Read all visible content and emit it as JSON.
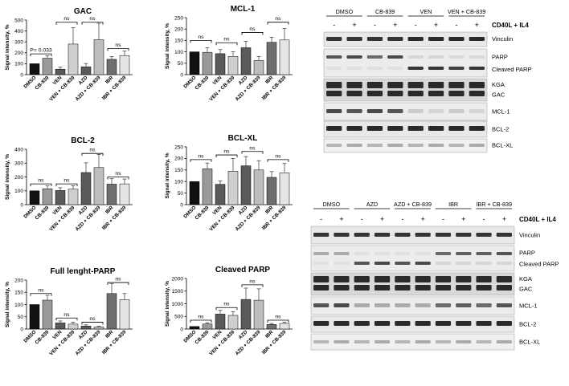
{
  "chart_data": [
    {
      "type": "bar",
      "title": "GAC",
      "ylabel": "Signal intensity, %",
      "categories": [
        "DMSO",
        "CB-839",
        "VEN",
        "VEN + CB-839",
        "AZD",
        "AZD + CB-839",
        "IBR",
        "IBR + CB-839"
      ],
      "values": [
        100,
        150,
        50,
        280,
        72,
        320,
        140,
        175
      ],
      "errors": [
        0,
        22,
        18,
        150,
        30,
        150,
        25,
        40
      ],
      "ylim": [
        0,
        500
      ],
      "yticks": [
        "0",
        "100",
        "200",
        "300",
        "400",
        "500"
      ],
      "annotations": [
        {
          "from": 0,
          "to": 1,
          "label": "P= 0.033",
          "level": 190
        },
        {
          "from": 2,
          "to": 3,
          "label": "ns",
          "level": 480
        },
        {
          "from": 4,
          "to": 5,
          "label": "ns",
          "level": 480
        },
        {
          "from": 6,
          "to": 7,
          "label": "ns",
          "level": 240
        }
      ]
    },
    {
      "type": "bar",
      "title": "MCL-1",
      "ylabel": "Signal intensity, %",
      "categories": [
        "DMSO",
        "CB-839",
        "VEN",
        "VEN + CB-839",
        "AZD",
        "AZD + CB-839",
        "IBR",
        "IBR + CB-839"
      ],
      "values": [
        100,
        98,
        92,
        80,
        118,
        62,
        142,
        152
      ],
      "errors": [
        0,
        20,
        18,
        20,
        28,
        18,
        22,
        50
      ],
      "ylim": [
        0,
        250
      ],
      "yticks": [
        "0",
        "50",
        "100",
        "150",
        "200",
        "250"
      ],
      "annotations": [
        {
          "from": 0,
          "to": 1,
          "label": "ns",
          "level": 150
        },
        {
          "from": 2,
          "to": 3,
          "label": "ns",
          "level": 140
        },
        {
          "from": 4,
          "to": 5,
          "label": "ns",
          "level": 185
        },
        {
          "from": 6,
          "to": 7,
          "label": "ns",
          "level": 230
        }
      ]
    },
    {
      "type": "bar",
      "title": "BCL-2",
      "ylabel": "Signal intensity, %",
      "categories": [
        "DMSO",
        "CB-839",
        "VEN",
        "VEN + CB-839",
        "AZD",
        "AZD + CB-839",
        "IBR",
        "IBR + CB-839"
      ],
      "values": [
        100,
        115,
        102,
        112,
        232,
        268,
        148,
        150
      ],
      "errors": [
        0,
        20,
        20,
        25,
        70,
        95,
        40,
        35
      ],
      "ylim": [
        0,
        400
      ],
      "yticks": [
        "0",
        "100",
        "200",
        "300",
        "400"
      ],
      "annotations": [
        {
          "from": 0,
          "to": 1,
          "label": "ns",
          "level": 150
        },
        {
          "from": 2,
          "to": 3,
          "label": "ns",
          "level": 150
        },
        {
          "from": 4,
          "to": 5,
          "label": "ns",
          "level": 370
        },
        {
          "from": 6,
          "to": 7,
          "label": "ns",
          "level": 200
        }
      ]
    },
    {
      "type": "bar",
      "title": "BCL-XL",
      "ylabel": "Signal intensity, %",
      "categories": [
        "DMSO",
        "CB-839",
        "VEN",
        "VEN + CB-839",
        "AZD",
        "AZD + CB-839",
        "IBR",
        "IBR + CB-839"
      ],
      "values": [
        100,
        155,
        88,
        145,
        168,
        150,
        118,
        138
      ],
      "errors": [
        0,
        25,
        15,
        55,
        40,
        40,
        25,
        40
      ],
      "ylim": [
        0,
        250
      ],
      "yticks": [
        "0",
        "50",
        "100",
        "150",
        "200",
        "250"
      ],
      "annotations": [
        {
          "from": 0,
          "to": 1,
          "label": "ns",
          "level": 195
        },
        {
          "from": 2,
          "to": 3,
          "label": "ns",
          "level": 215
        },
        {
          "from": 4,
          "to": 5,
          "label": "ns",
          "level": 230
        },
        {
          "from": 6,
          "to": 7,
          "label": "ns",
          "level": 195
        }
      ]
    },
    {
      "type": "bar",
      "title": "Full lenght-PARP",
      "ylabel": "Signal intensity, %",
      "categories": [
        "DMSO",
        "CB-839",
        "VEN",
        "VEN + CB-839",
        "AZD",
        "AZD + CB-839",
        "IBR",
        "IBR + CB-839"
      ],
      "values": [
        100,
        118,
        25,
        20,
        12,
        8,
        145,
        120
      ],
      "errors": [
        0,
        20,
        8,
        8,
        5,
        3,
        40,
        25
      ],
      "ylim": [
        0,
        200
      ],
      "yticks": [
        "0",
        "50",
        "100",
        "150",
        "200"
      ],
      "annotations": [
        {
          "from": 0,
          "to": 1,
          "label": "ns",
          "level": 145
        },
        {
          "from": 2,
          "to": 3,
          "label": "ns",
          "level": 45
        },
        {
          "from": 4,
          "to": 5,
          "label": "ns",
          "level": 28
        },
        {
          "from": 6,
          "to": 7,
          "label": "ns",
          "level": 190
        }
      ]
    },
    {
      "type": "bar",
      "title": "Cleaved PARP",
      "ylabel": "Signal intensity, %",
      "categories": [
        "DMSO",
        "CB-839",
        "VEN",
        "VEN + CB-839",
        "AZD",
        "AZD + CB-839",
        "IBR",
        "IBR + CB-839"
      ],
      "values": [
        100,
        200,
        590,
        540,
        1170,
        1140,
        180,
        220
      ],
      "errors": [
        0,
        50,
        150,
        150,
        450,
        450,
        40,
        50
      ],
      "ylim": [
        0,
        2000
      ],
      "yticks": [
        "0",
        "500",
        "1000",
        "1500",
        "2000"
      ],
      "annotations": [
        {
          "from": 0,
          "to": 1,
          "label": "ns",
          "level": 350
        },
        {
          "from": 2,
          "to": 3,
          "label": "ns",
          "level": 850
        },
        {
          "from": 4,
          "to": 5,
          "label": "ns",
          "level": 1750
        },
        {
          "from": 6,
          "to": 7,
          "label": "ns",
          "level": 350
        }
      ]
    }
  ],
  "blot_top": {
    "groups": [
      "DMSO",
      "CB-839",
      "VEN",
      "VEN + CB-839"
    ],
    "condition": "CD40L + IL4",
    "signs": [
      "-",
      "+",
      "-",
      "+",
      "-",
      "+",
      "-",
      "+"
    ],
    "rows": [
      {
        "label": "Vinculin",
        "sublabel": ""
      },
      {
        "label": "PARP",
        "sublabel": "Cleaved PARP"
      },
      {
        "label": "KGA",
        "sublabel": "GAC"
      },
      {
        "label": "MCL-1",
        "sublabel": ""
      },
      {
        "label": "BCL-2",
        "sublabel": ""
      },
      {
        "label": "BCL-XL",
        "sublabel": ""
      }
    ]
  },
  "blot_bottom": {
    "groups": [
      "DMSO",
      "AZD",
      "AZD + CB-839",
      "IBR",
      "IBR + CB-839"
    ],
    "condition": "CD40L + IL4",
    "signs": [
      "-",
      "+",
      "-",
      "+",
      "-",
      "+",
      "-",
      "+",
      "-",
      "+"
    ],
    "rows": [
      {
        "label": "Vinculin",
        "sublabel": ""
      },
      {
        "label": "PARP",
        "sublabel": "Cleaved PARP"
      },
      {
        "label": "KGA",
        "sublabel": "GAC"
      },
      {
        "label": "MCL-1",
        "sublabel": ""
      },
      {
        "label": "BCL-2",
        "sublabel": ""
      },
      {
        "label": "BCL-XL",
        "sublabel": ""
      }
    ]
  },
  "colors": {
    "bars": [
      "#111111",
      "#9a9a9a",
      "#5a5a5a",
      "#cfcfcf",
      "#5a5a5a",
      "#bdbdbd",
      "#6e6e6e",
      "#e4e4e4"
    ]
  }
}
